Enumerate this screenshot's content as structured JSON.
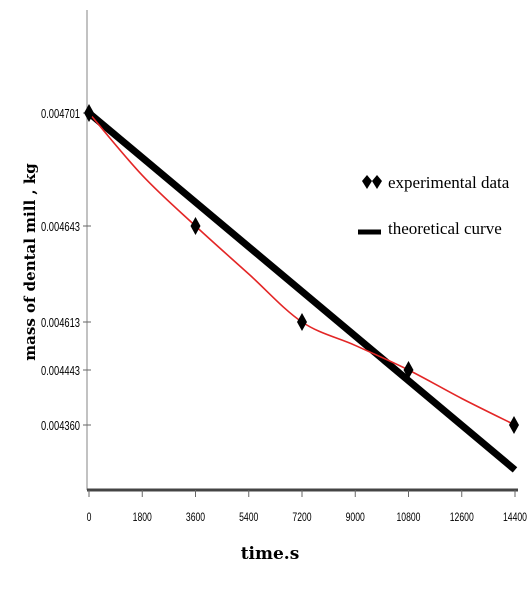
{
  "chart_data": {
    "type": "line",
    "title": "",
    "xlabel": "time.s",
    "ylabel": "mass of dental mill , kg",
    "x_ticks": [
      0,
      1800,
      3600,
      5400,
      7200,
      9000,
      10800,
      12600,
      14400
    ],
    "x_tick_labels": [
      "0",
      "1800",
      "3600",
      "5400",
      "7200",
      "9000",
      "10800",
      "12600",
      "14400"
    ],
    "y_tick_labels": [
      "0.004701",
      "0.004643",
      "0.004613",
      "0.004443",
      "0.004360"
    ],
    "xlim": [
      0,
      14400
    ],
    "grid": false,
    "legend_position": "right",
    "series": [
      {
        "name": "experimental data",
        "kind": "markers",
        "marker": "diamond",
        "color": "#000000",
        "x": [
          0,
          3600,
          7200,
          10800,
          14400
        ],
        "y": [
          0.004701,
          0.004643,
          0.004613,
          0.004443,
          0.00436
        ]
      },
      {
        "name": "theoretical curve",
        "kind": "line",
        "color": "#000000",
        "x": [
          0,
          14400
        ],
        "y": [
          0.004701,
          0.00433
        ]
      },
      {
        "kind": "line",
        "color": "#e32626",
        "x": [
          0,
          1800,
          3600,
          5400,
          7200,
          9000,
          10800,
          12600,
          14400
        ],
        "y": [
          0.004701,
          0.004669,
          0.004643,
          0.004628,
          0.004613,
          0.00453,
          0.004443,
          0.0044,
          0.00436
        ]
      }
    ]
  }
}
